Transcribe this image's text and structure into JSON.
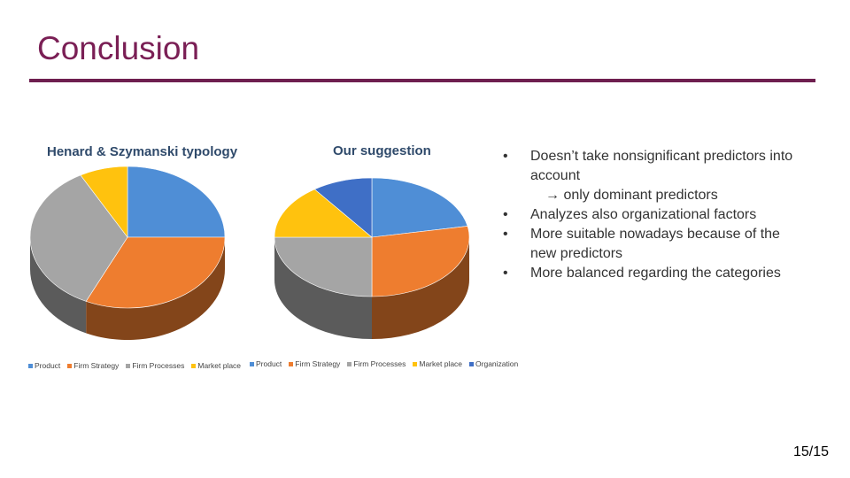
{
  "slide": {
    "title": "Conclusion",
    "page_number": "15/15"
  },
  "bullets": [
    {
      "text": "Doesn’t take nonsignificant predictors into account",
      "sub": false
    },
    {
      "text": "→ only dominant predictors",
      "sub": true
    },
    {
      "text": "Analyzes also organizational factors",
      "sub": false
    },
    {
      "text": "More suitable nowadays because of the new predictors",
      "sub": false
    },
    {
      "text": "More balanced regarding the categories",
      "sub": false
    }
  ],
  "chart_data": [
    {
      "type": "pie",
      "title": "Henard & Szymanski typology",
      "categories": [
        "Product",
        "Firm Strategy",
        "Firm Processes",
        "Market place"
      ],
      "values": [
        25,
        32,
        35,
        8
      ],
      "colors": [
        "#4f8ed6",
        "#ee7d2f",
        "#a5a5a5",
        "#ffc20e"
      ],
      "legend": "bottom"
    },
    {
      "type": "pie",
      "title": "Our suggestion",
      "categories": [
        "Product",
        "Firm Strategy",
        "Firm Processes",
        "Market place",
        "Organization"
      ],
      "values": [
        22,
        28,
        25,
        15,
        10
      ],
      "colors": [
        "#4f8ed6",
        "#ee7d2f",
        "#a5a5a5",
        "#ffc20e",
        "#3f6fc6"
      ],
      "legend": "bottom"
    }
  ]
}
